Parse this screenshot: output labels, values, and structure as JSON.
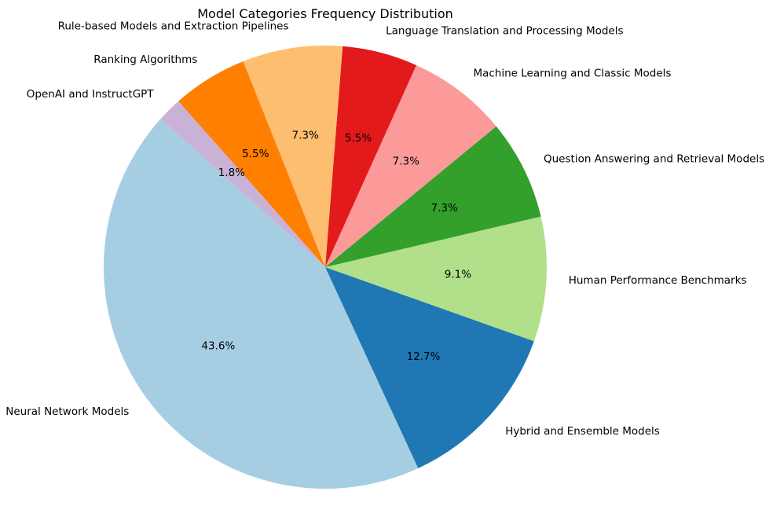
{
  "chart_data": {
    "type": "pie",
    "title": "Model Categories Frequency Distribution",
    "start_angle_deg": 138,
    "direction": "counterclockwise",
    "slices": [
      {
        "label": "Neural Network Models",
        "value": 43.6,
        "pct_label": "43.6%",
        "color": "#a6cee3"
      },
      {
        "label": "Hybrid and Ensemble Models",
        "value": 12.7,
        "pct_label": "12.7%",
        "color": "#1f78b4"
      },
      {
        "label": "Human Performance Benchmarks",
        "value": 9.1,
        "pct_label": "9.1%",
        "color": "#b2df8a"
      },
      {
        "label": "Question Answering and Retrieval Models",
        "value": 7.3,
        "pct_label": "7.3%",
        "color": "#33a02c"
      },
      {
        "label": "Machine Learning and Classic Models",
        "value": 7.3,
        "pct_label": "7.3%",
        "color": "#fb9a99"
      },
      {
        "label": "Language Translation and Processing Models",
        "value": 5.5,
        "pct_label": "5.5%",
        "color": "#e31a1c"
      },
      {
        "label": "Rule-based Models and Extraction Pipelines",
        "value": 7.3,
        "pct_label": "7.3%",
        "color": "#fdbf6f"
      },
      {
        "label": "Ranking Algorithms",
        "value": 5.5,
        "pct_label": "5.5%",
        "color": "#ff7f00"
      },
      {
        "label": "OpenAI and InstructGPT",
        "value": 1.8,
        "pct_label": "1.8%",
        "color": "#cab2d6"
      }
    ]
  }
}
